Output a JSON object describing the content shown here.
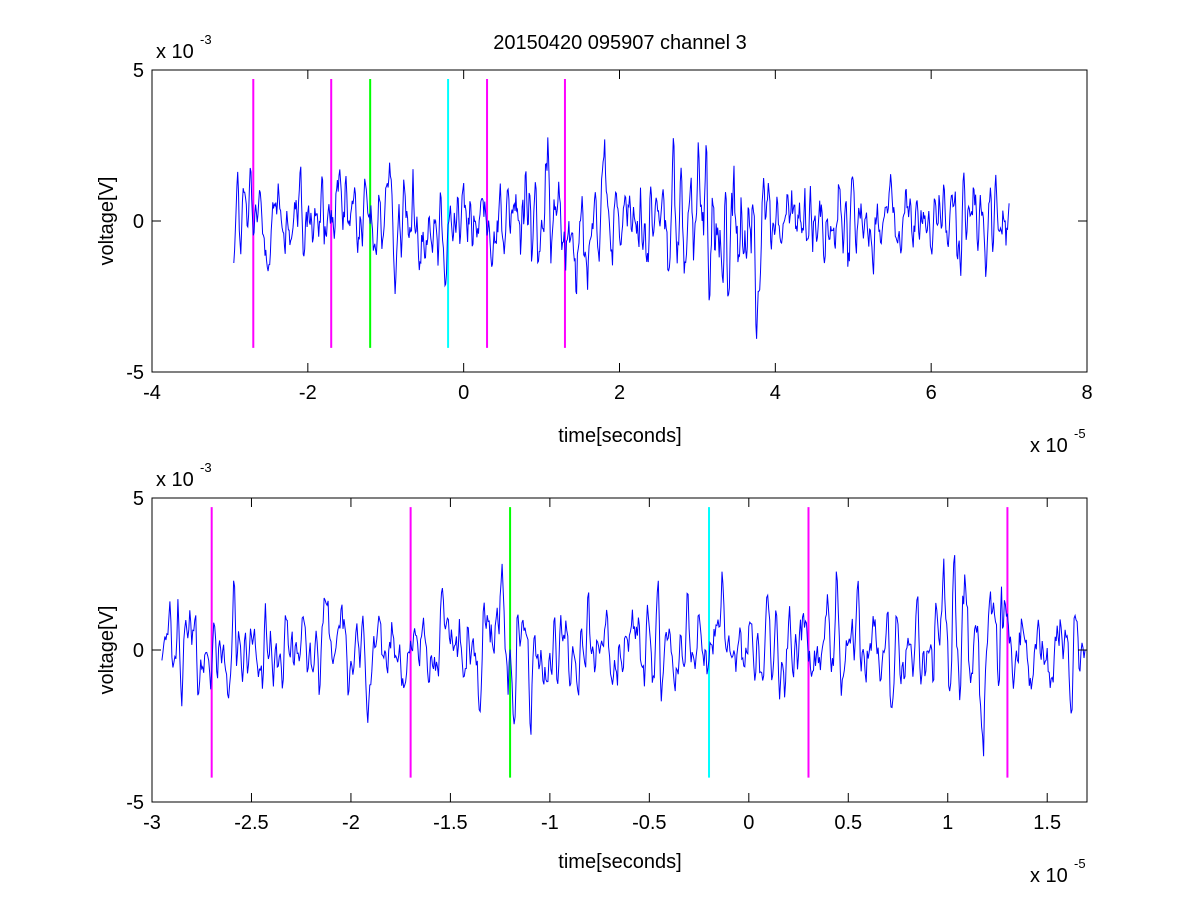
{
  "figure": {
    "title": "20150420 095907 channel 3"
  },
  "colors": {
    "signal": "#0000ff",
    "magenta": "#ff00ff",
    "green": "#00ff00",
    "cyan": "#00ffff",
    "axis": "#000000"
  },
  "chart_data": [
    {
      "type": "line",
      "panel": "top",
      "xlabel": "time[seconds]",
      "ylabel": "voltage[V]",
      "x_multiplier_label": "x 10",
      "x_multiplier_exp": "-5",
      "y_multiplier_label": "x 10",
      "y_multiplier_exp": "-3",
      "xlim": [
        -4,
        8
      ],
      "ylim": [
        -5,
        5
      ],
      "x_ticks": [
        -4,
        -2,
        0,
        2,
        4,
        6,
        8
      ],
      "x_tick_labels": [
        "-4",
        "-2",
        "0",
        "2",
        "4",
        "6",
        "8"
      ],
      "y_ticks": [
        -5,
        0,
        5
      ],
      "y_tick_labels": [
        "-5",
        "0",
        "5"
      ],
      "grid": false,
      "series_x_range": [
        -2.95,
        7.0
      ],
      "markers": [
        {
          "x": -2.7,
          "color": "magenta",
          "y_range": [
            -4.2,
            4.7
          ]
        },
        {
          "x": -1.7,
          "color": "magenta",
          "y_range": [
            -4.2,
            4.7
          ]
        },
        {
          "x": -1.2,
          "color": "green",
          "y_range": [
            -4.2,
            4.7
          ]
        },
        {
          "x": -0.2,
          "color": "cyan",
          "y_range": [
            -4.2,
            4.7
          ]
        },
        {
          "x": 0.3,
          "color": "magenta",
          "y_range": [
            -4.2,
            4.7
          ]
        },
        {
          "x": 1.3,
          "color": "magenta",
          "y_range": [
            -4.2,
            4.7
          ]
        }
      ]
    },
    {
      "type": "line",
      "panel": "bottom",
      "xlabel": "time[seconds]",
      "ylabel": "voltage[V]",
      "x_multiplier_label": "x 10",
      "x_multiplier_exp": "-5",
      "y_multiplier_label": "x 10",
      "y_multiplier_exp": "-3",
      "xlim": [
        -3.0,
        1.7
      ],
      "ylim": [
        -5,
        5
      ],
      "x_ticks": [
        -3,
        -2.5,
        -2,
        -1.5,
        -1,
        -0.5,
        0,
        0.5,
        1,
        1.5
      ],
      "x_tick_labels": [
        "-3",
        "-2.5",
        "-2",
        "-1.5",
        "-1",
        "-0.5",
        "0",
        "0.5",
        "1",
        "1.5"
      ],
      "y_ticks": [
        -5,
        0,
        5
      ],
      "y_tick_labels": [
        "-5",
        "0",
        "5"
      ],
      "grid": false,
      "series_x_range": [
        -2.95,
        1.7
      ],
      "markers": [
        {
          "x": -2.7,
          "color": "magenta",
          "y_range": [
            -4.2,
            4.7
          ]
        },
        {
          "x": -1.7,
          "color": "magenta",
          "y_range": [
            -4.2,
            4.7
          ]
        },
        {
          "x": -1.2,
          "color": "green",
          "y_range": [
            -4.2,
            4.7
          ]
        },
        {
          "x": -0.2,
          "color": "cyan",
          "y_range": [
            -4.2,
            4.7
          ]
        },
        {
          "x": 0.3,
          "color": "magenta",
          "y_range": [
            -4.2,
            4.7
          ]
        },
        {
          "x": 1.3,
          "color": "magenta",
          "y_range": [
            -4.2,
            4.7
          ]
        }
      ]
    }
  ]
}
